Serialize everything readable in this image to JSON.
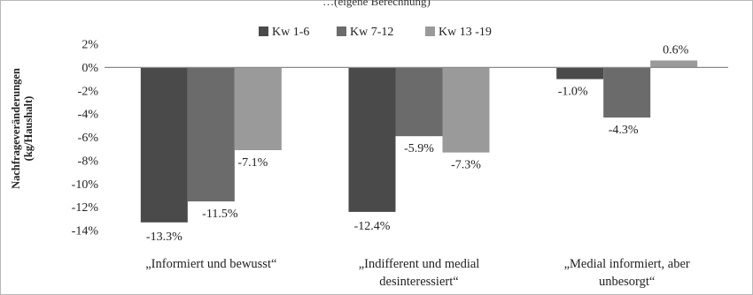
{
  "header": {
    "cropped_text": "…(eigene Berechnung)"
  },
  "chart_data": {
    "type": "bar",
    "ylabel": [
      "Nachfrageveränderungen",
      "(kg/Haushalt)"
    ],
    "ylim": [
      -14,
      2
    ],
    "yticks": [
      2,
      0,
      -2,
      -4,
      -6,
      -8,
      -10,
      -12,
      -14
    ],
    "ytick_labels": [
      "2%",
      "0%",
      "-2%",
      "-4%",
      "-6%",
      "-8%",
      "-10%",
      "-12%",
      "-14%"
    ],
    "categories": [
      [
        "„Informiert und bewusst“"
      ],
      [
        "„Indifferent und medial",
        "desinteressiert“"
      ],
      [
        "„Medial informiert, aber",
        "unbesorgt“"
      ]
    ],
    "series": [
      {
        "name": "Kw 1-6",
        "color": "#4a4a4a",
        "values": [
          -13.3,
          -12.4,
          -1.0
        ],
        "labels": [
          "-13.3%",
          "-12.4%",
          "-1.0%"
        ]
      },
      {
        "name": "Kw 7-12",
        "color": "#6b6b6b",
        "values": [
          -11.5,
          -5.9,
          -4.3
        ],
        "labels": [
          "-11.5%",
          "-5.9%",
          "-4.3%"
        ]
      },
      {
        "name": "Kw 13 -19",
        "color": "#9a9a9a",
        "values": [
          -7.1,
          -7.3,
          0.6
        ],
        "labels": [
          "-7.1%",
          "-7.3%",
          "0.6%"
        ]
      }
    ],
    "legend_position": "top",
    "grid": false
  }
}
